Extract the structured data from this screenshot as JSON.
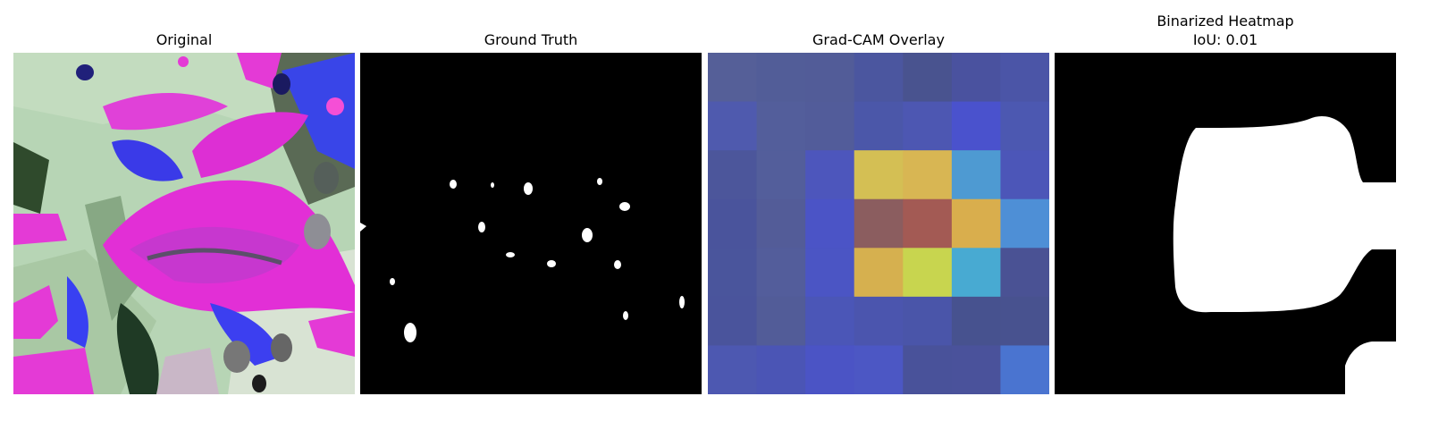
{
  "panels": [
    {
      "title": "Original"
    },
    {
      "title": "Ground Truth"
    },
    {
      "title": "Grad-CAM Overlay"
    },
    {
      "title": "Binarized Heatmap",
      "subtitle": "IoU: 0.01"
    }
  ],
  "gradcam": {
    "grid_rows": 7,
    "grid_cols": 7,
    "cells": [
      [
        "#555f98",
        "#525d98",
        "#525c98",
        "#4b569f",
        "#49538f",
        "#4a529f",
        "#4b55a7"
      ],
      [
        "#4f5aae",
        "#535e9b",
        "#525c9a",
        "#4b57a9",
        "#4d57b2",
        "#4a52cd",
        "#4c58b1"
      ],
      [
        "#4c569b",
        "#535e9b",
        "#4d56bc",
        "#d4bf54",
        "#d8b653",
        "#4e9ad2",
        "#4c56b8"
      ],
      [
        "#4a549c",
        "#535c98",
        "#4b54c6",
        "#8b5d5f",
        "#a35a54",
        "#d9ae4d",
        "#4e8fd6"
      ],
      [
        "#4a559c",
        "#535d9b",
        "#4b55c4",
        "#d6b04f",
        "#c8d54f",
        "#48aad2",
        "#4a5294"
      ],
      [
        "#4a549c",
        "#525c98",
        "#4b56b7",
        "#4b55ae",
        "#4a55a9",
        "#47528f",
        "#48528f"
      ],
      [
        "#4d58b1",
        "#4b55b5",
        "#4b54c5",
        "#4c57c4",
        "#49529a",
        "#4a529b",
        "#4a74d0"
      ]
    ]
  }
}
